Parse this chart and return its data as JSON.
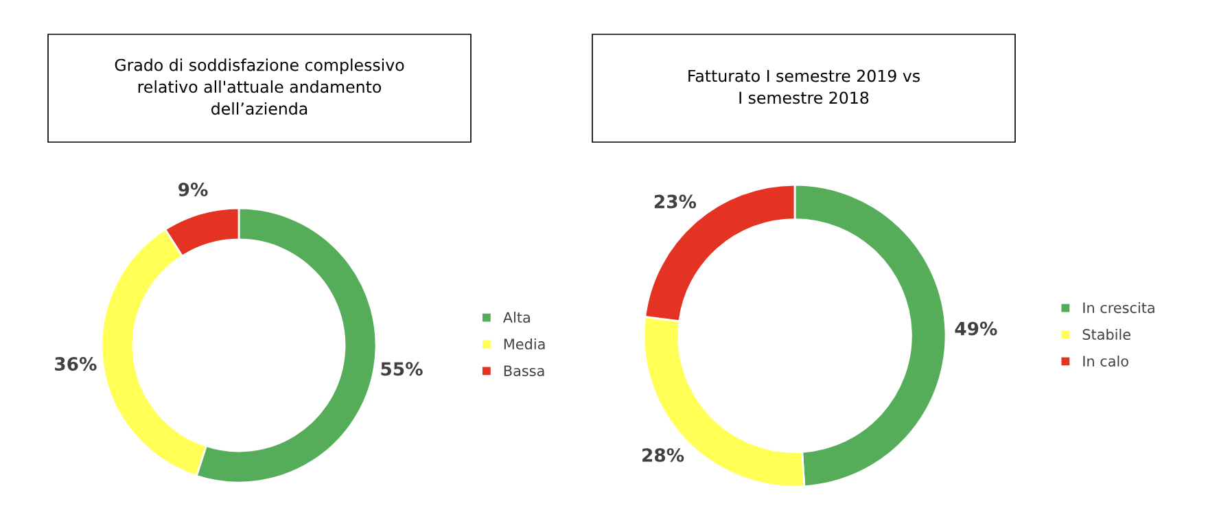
{
  "chart_data": [
    {
      "type": "donut",
      "title": "Grado di soddisfazione complessivo\nrelativo all'attuale andamento\ndell’azienda",
      "categories": [
        "Alta",
        "Media",
        "Bassa"
      ],
      "values": [
        55,
        36,
        9
      ],
      "value_labels": [
        "55%",
        "36%",
        "9%"
      ],
      "colors": [
        "#55ad5a",
        "#ffff55",
        "#e53323"
      ],
      "legend": "right"
    },
    {
      "type": "donut",
      "title": "Fatturato I semestre 2019 vs\nI semestre 2018",
      "categories": [
        "In crescita",
        "Stabile",
        "In calo"
      ],
      "values": [
        49,
        28,
        23
      ],
      "value_labels": [
        "49%",
        "28%",
        "23%"
      ],
      "colors": [
        "#55ad5a",
        "#ffff55",
        "#e53323"
      ],
      "legend": "right"
    }
  ]
}
